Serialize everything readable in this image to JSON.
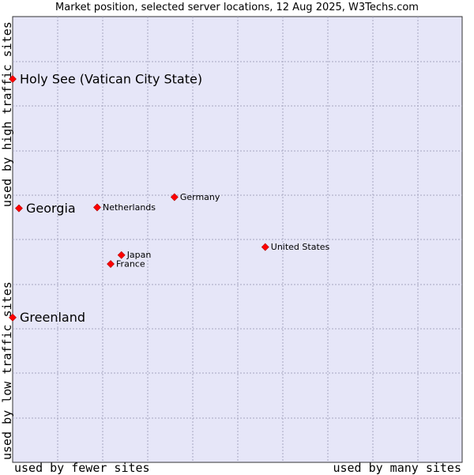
{
  "chart_data": {
    "type": "scatter",
    "title": "Market position, selected server locations, 12 Aug 2025, W3Techs.com",
    "xlabel_left": "used by fewer sites",
    "xlabel_right": "used by many sites",
    "ylabel_top": "used by high traffic sites",
    "ylabel_bottom": "used by low traffic sites",
    "xlim": [
      0,
      1
    ],
    "ylim": [
      0,
      1
    ],
    "grid": true,
    "colors": {
      "plot_bg": "#e6e6f8",
      "grid": "#a6a6c0",
      "marker": "#ff0000",
      "marker_edge": "#b00000",
      "border": "#333333"
    },
    "points": [
      {
        "label": "Holy See (Vatican City State)",
        "x": 0.0,
        "y": 0.86,
        "size": "large"
      },
      {
        "label": "Georgia",
        "x": 0.014,
        "y": 0.57,
        "size": "large"
      },
      {
        "label": "Greenland",
        "x": 0.0,
        "y": 0.325,
        "size": "large"
      },
      {
        "label": "Netherlands",
        "x": 0.188,
        "y": 0.572,
        "size": "small"
      },
      {
        "label": "Germany",
        "x": 0.36,
        "y": 0.595,
        "size": "small"
      },
      {
        "label": "United States",
        "x": 0.562,
        "y": 0.483,
        "size": "small"
      },
      {
        "label": "Japan",
        "x": 0.242,
        "y": 0.465,
        "size": "small"
      },
      {
        "label": "France",
        "x": 0.218,
        "y": 0.445,
        "size": "small"
      }
    ]
  }
}
